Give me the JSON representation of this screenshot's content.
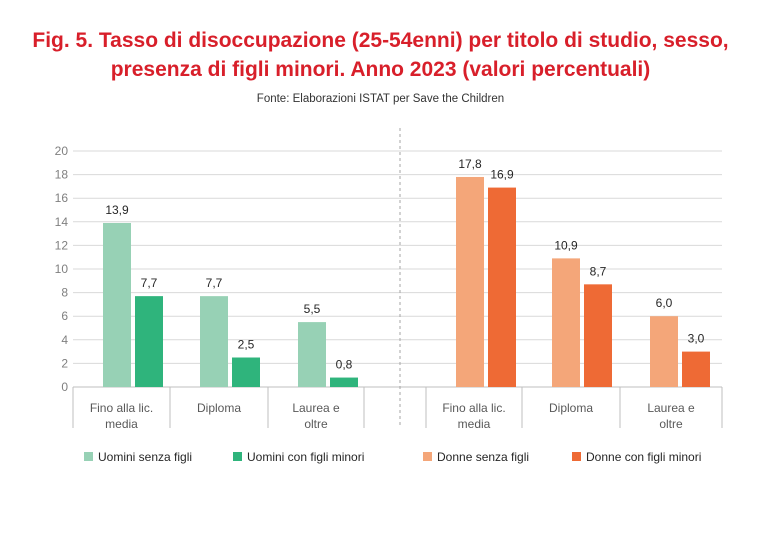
{
  "title_line1": "Fig. 5. Tasso di disoccupazione (25-54enni) per titolo di studio, sesso,",
  "title_line2": "presenza di figli minori. Anno 2023 (valori percentuali)",
  "source": "Fonte: Elaborazioni ISTAT per Save the Children",
  "colors": {
    "title": "#d81f2a",
    "uomini_senza": "#97d1b5",
    "uomini_con": "#2fb47c",
    "donne_senza": "#f4a679",
    "donne_con": "#ee6a35"
  },
  "chart_data": {
    "type": "bar",
    "ylim": [
      0,
      20
    ],
    "yticks": [
      "0",
      "2",
      "4",
      "6",
      "8",
      "10",
      "12",
      "14",
      "16",
      "18",
      "20"
    ],
    "grid": true,
    "legend_position": "bottom",
    "categories": [
      "Fino alla lic. media",
      "Diploma",
      "Laurea e oltre"
    ],
    "category_lines": [
      [
        "Fino alla lic.",
        "media"
      ],
      [
        "Diploma"
      ],
      [
        "Laurea e",
        "oltre"
      ]
    ],
    "groups": [
      {
        "series": [
          {
            "name": "Uomini senza figli",
            "values": [
              13.9,
              7.7,
              5.5
            ],
            "labels": [
              "13,9",
              "7,7",
              "5,5"
            ]
          },
          {
            "name": "Uomini con figli minori",
            "values": [
              7.7,
              2.5,
              0.8
            ],
            "labels": [
              "7,7",
              "2,5",
              "0,8"
            ]
          }
        ]
      },
      {
        "series": [
          {
            "name": "Donne senza figli",
            "values": [
              17.8,
              10.9,
              6.0
            ],
            "labels": [
              "17,8",
              "10,9",
              "6,0"
            ]
          },
          {
            "name": "Donne con figli minori",
            "values": [
              16.9,
              8.7,
              3.0
            ],
            "labels": [
              "16,9",
              "8,7",
              "3,0"
            ]
          }
        ]
      }
    ]
  }
}
